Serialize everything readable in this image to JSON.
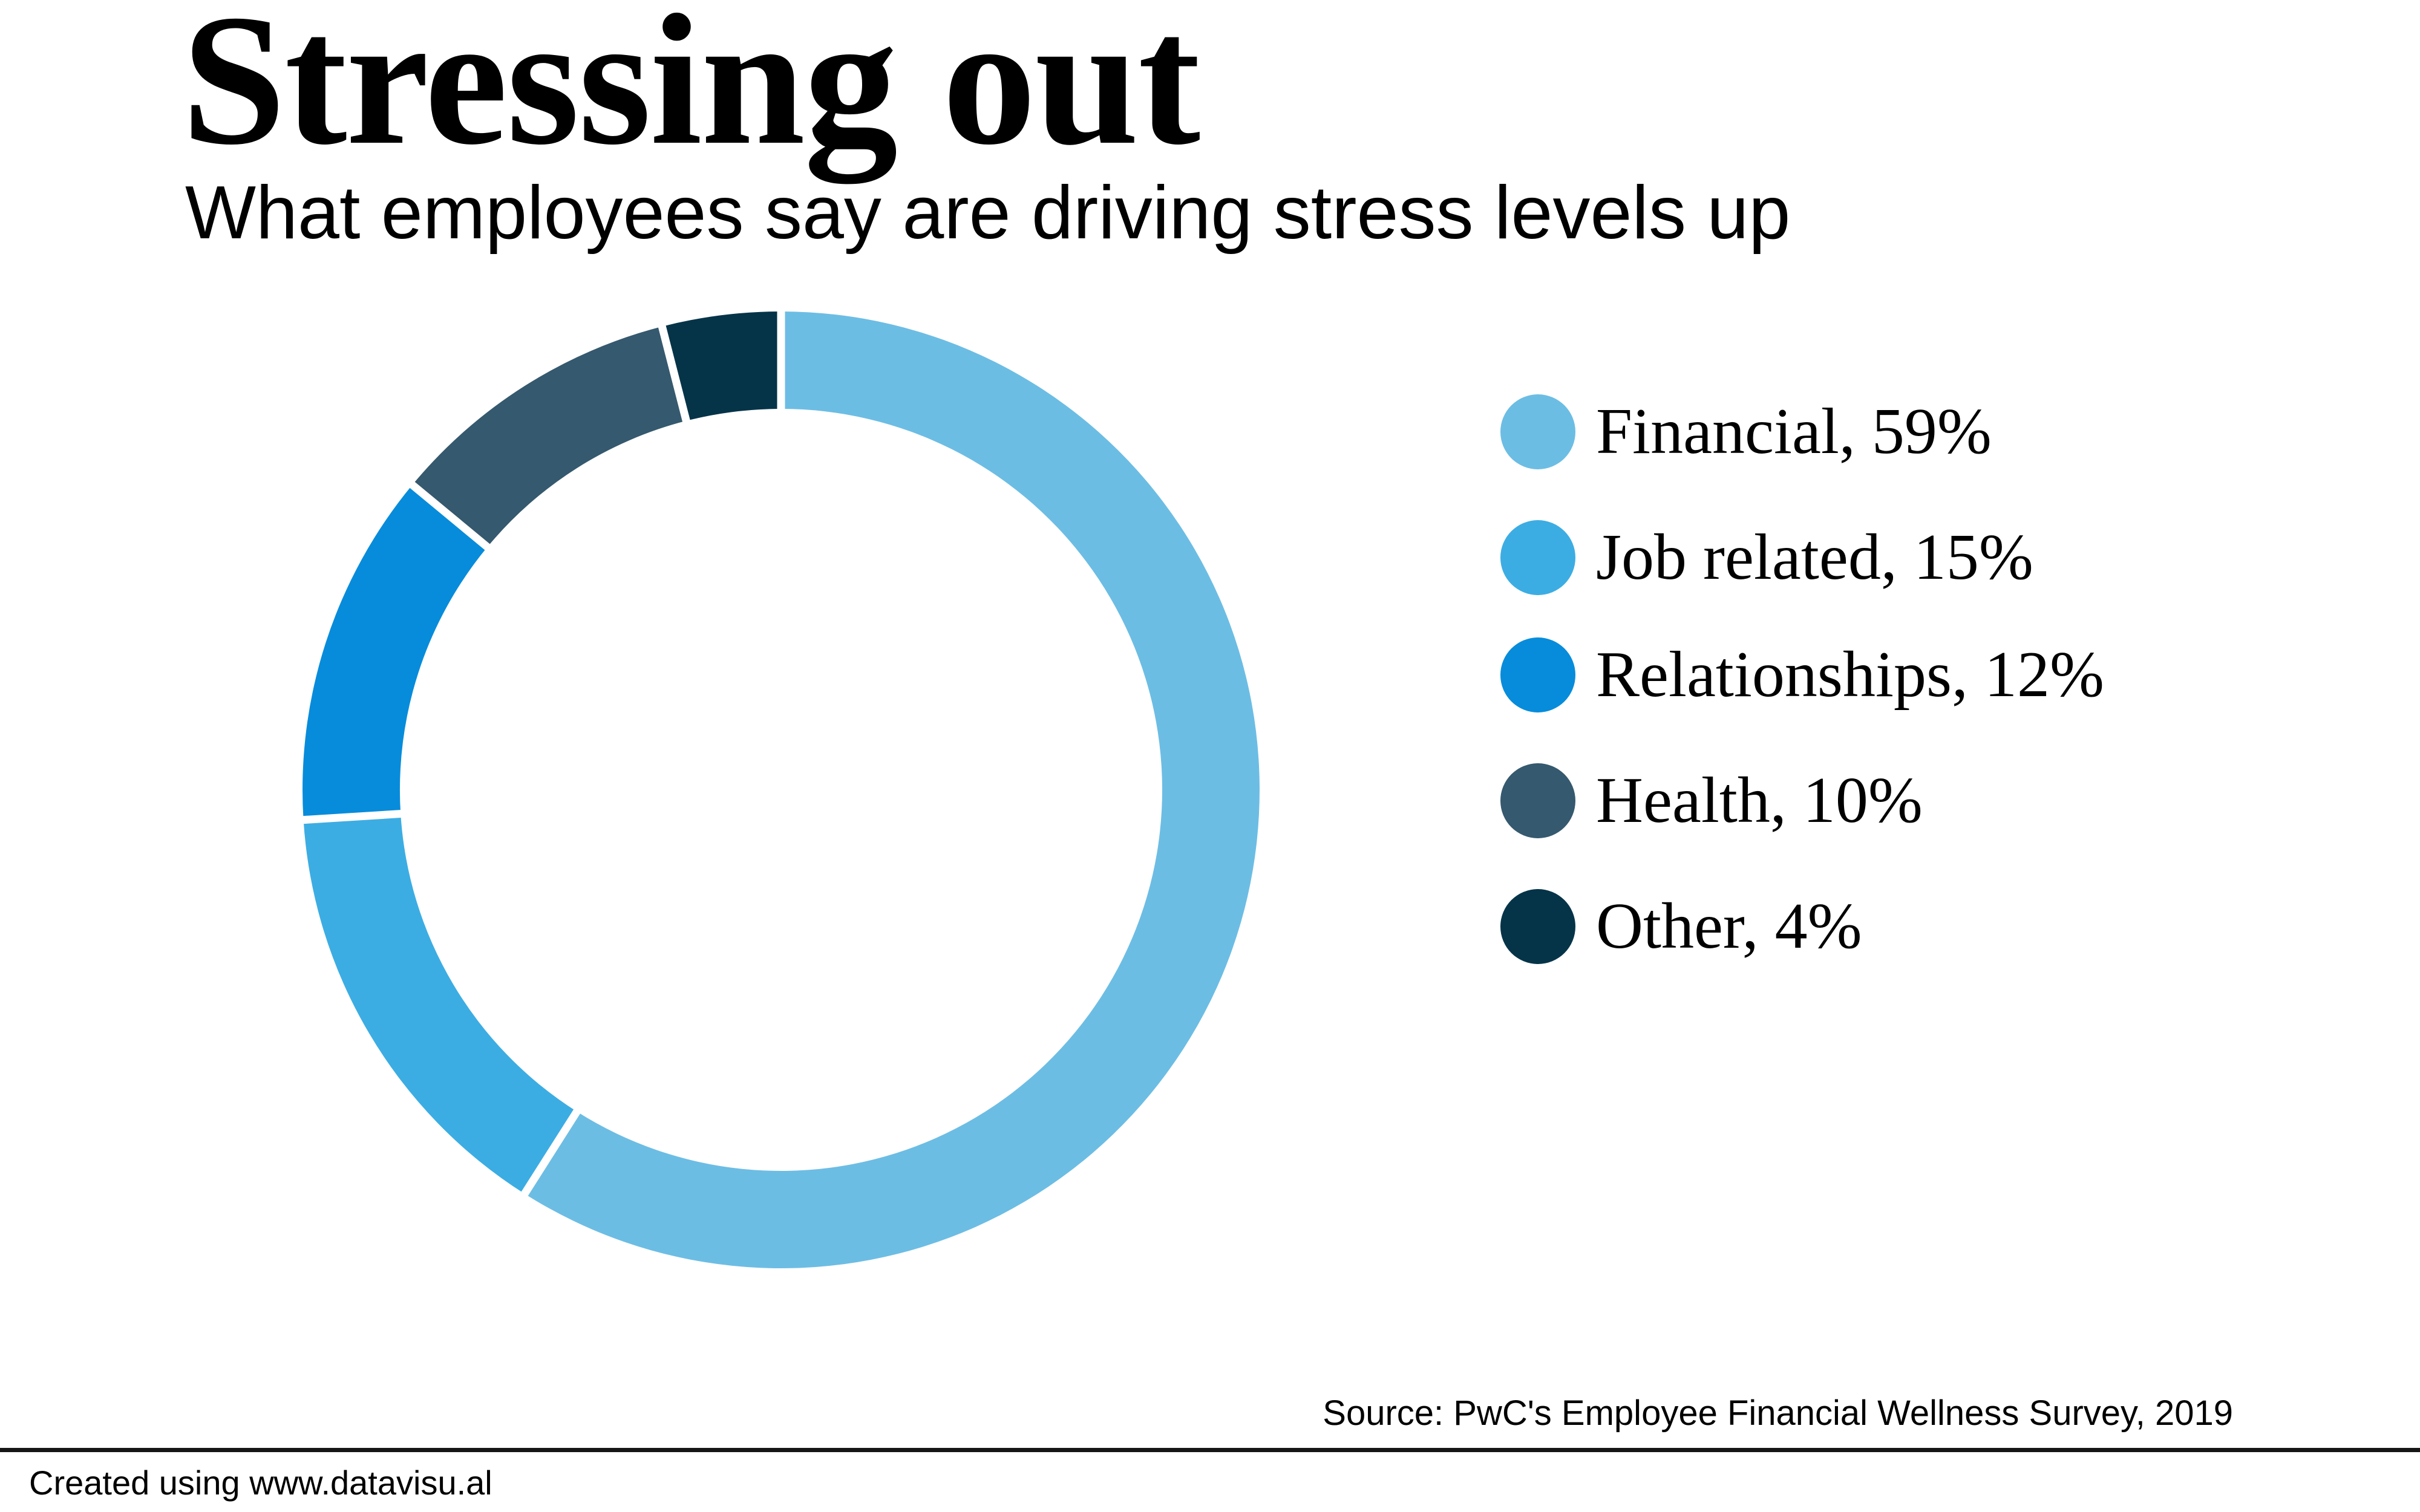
{
  "header": {
    "title": "Stressing out",
    "subtitle": "What employees say are driving stress levels up"
  },
  "chart_data": {
    "type": "pie",
    "variant": "donut",
    "title": "Stressing out",
    "subtitle": "What employees say are driving stress levels up",
    "categories": [
      "Financial",
      "Job related",
      "Relationships",
      "Health",
      "Other"
    ],
    "values": [
      59,
      15,
      12,
      10,
      4
    ],
    "unit": "%",
    "colors": [
      "#6CBDE4",
      "#3CADE3",
      "#078CDB",
      "#35596E",
      "#053449"
    ],
    "start_angle_deg": 0,
    "direction": "clockwise",
    "inner_radius_ratio": 0.8,
    "separator_color": "#ffffff",
    "legend_position": "right",
    "legend": [
      {
        "label": "Financial, 59%",
        "color": "#6CBDE4"
      },
      {
        "label": "Job related, 15%",
        "color": "#3CADE3"
      },
      {
        "label": "Relationships, 12%",
        "color": "#078CDB"
      },
      {
        "label": "Health, 10%",
        "color": "#35596E"
      },
      {
        "label": "Other, 4%",
        "color": "#053449"
      }
    ]
  },
  "source": {
    "text": "Source: PwC's Employee Financial Wellness Survey, 2019"
  },
  "footer": {
    "text": "Created using www.datavisu.al"
  }
}
